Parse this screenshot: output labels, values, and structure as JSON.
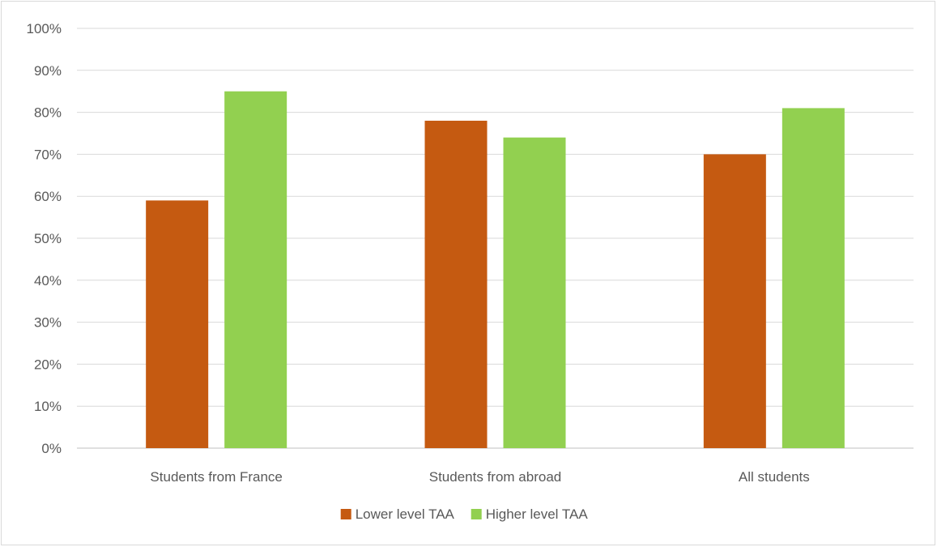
{
  "chart_data": {
    "type": "bar",
    "categories": [
      "Students from France",
      "Students from abroad",
      "All students"
    ],
    "series": [
      {
        "name": "Lower level TAA",
        "values": [
          59,
          78,
          70
        ],
        "color": "#c55a11"
      },
      {
        "name": "Higher level TAA",
        "values": [
          85,
          74,
          81
        ],
        "color": "#92d050"
      }
    ],
    "ylim": [
      0,
      100
    ],
    "yticks": [
      "0%",
      "10%",
      "20%",
      "30%",
      "40%",
      "50%",
      "60%",
      "70%",
      "80%",
      "90%",
      "100%"
    ],
    "grid": true,
    "legend_position": "bottom",
    "gridline_color": "#d9d9d9",
    "axis_color": "#bfbfbf"
  }
}
